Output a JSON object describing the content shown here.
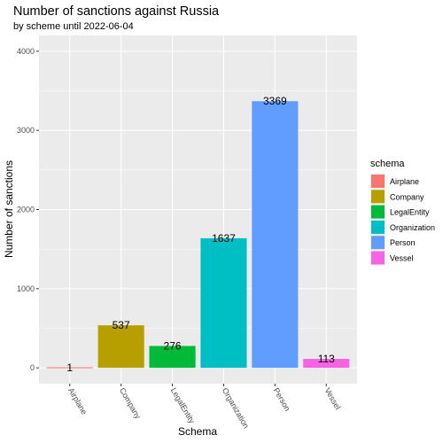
{
  "chart_data": {
    "type": "bar",
    "title": "Number of sanctions against Russia",
    "subtitle": "by scheme until 2022-06-04",
    "xlabel": "Schema",
    "ylabel": "Number of sanctions",
    "categories": [
      "Airplane",
      "Company",
      "LegalEntity",
      "Organization",
      "Person",
      "Vessel"
    ],
    "values": [
      1,
      537,
      276,
      1637,
      3369,
      113
    ],
    "colors": [
      "#F8766D",
      "#B79F00",
      "#00BA38",
      "#00BFC4",
      "#619CFF",
      "#F564E3"
    ],
    "ylim": [
      0,
      4000
    ],
    "yticks": [
      0,
      1000,
      2000,
      3000,
      4000
    ],
    "grid": true,
    "legend": {
      "title": "schema",
      "position": "right",
      "items": [
        "Airplane",
        "Company",
        "LegalEntity",
        "Organization",
        "Person",
        "Vessel"
      ]
    }
  }
}
